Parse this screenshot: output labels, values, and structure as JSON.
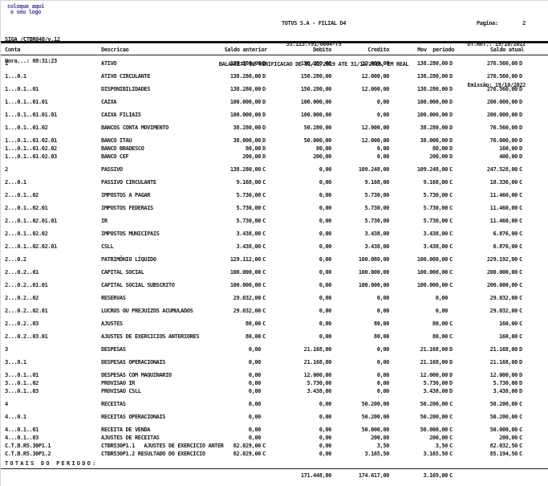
{
  "page": {
    "logo": "coloque aqui\no seu logo",
    "logo_color": "#4540a2",
    "system_line": "SIGA /CTBR040/v.12",
    "time_line": "Hora...: 08:31:23",
    "company_line": "TOTVS S.A - FILIAL D4",
    "cnpj_line": "53.113.791/0004-75",
    "title_line": "BALANCETE DE VERIFICACAO DE 01/01/2019 ATE 31/12/2019, EM REAL",
    "page_line": "Pagina:        2",
    "ref_line": "DT.Ref.: 19/10/2022",
    "emission_line": "Emissão: 19/10/2022"
  },
  "table": {
    "headers": {
      "conta": "Conta",
      "descricao": "Descricao",
      "saldo_anterior": "Saldo anterior",
      "debito": "Debito",
      "credito": "Credito",
      "mov_periodo": "Mov  periodo",
      "saldo_atual": "Saldo atual"
    },
    "rows": [
      {
        "conta": "1",
        "desc": "ATIVO",
        "sa": "138.280,00",
        "sas": "D",
        "deb": "150.280,00",
        "cred": "12.000,00",
        "mov": "138.280,00",
        "movs": "D",
        "atual": "276.560,00",
        "atuals": "D",
        "tight": false
      },
      {
        "conta": "1...0.1",
        "desc": "ATIVO CIRCULANTE",
        "sa": "138.280,00",
        "sas": "D",
        "deb": "150.280,00",
        "cred": "12.000,00",
        "mov": "138.280,00",
        "movs": "D",
        "atual": "276.560,00",
        "atuals": "D",
        "tight": false
      },
      {
        "conta": "1...0.1..01",
        "desc": "DISPONIBILIDADES",
        "sa": "138.280,00",
        "sas": "D",
        "deb": "150.280,00",
        "cred": "12.000,00",
        "mov": "138.280,00",
        "movs": "D",
        "atual": "276.560,00",
        "atuals": "D",
        "tight": false
      },
      {
        "conta": "1...0.1..01.01",
        "desc": "CAIXA",
        "sa": "100.000,00",
        "sas": "D",
        "deb": "100.000,00",
        "cred": "0,00",
        "mov": "100.000,00",
        "movs": "D",
        "atual": "200.000,00",
        "atuals": "D",
        "tight": false
      },
      {
        "conta": "1...0.1..01.01.01",
        "desc": "CAIXA FILIAIS",
        "sa": "100.000,00",
        "sas": "D",
        "deb": "100.000,00",
        "cred": "0,00",
        "mov": "100.000,00",
        "movs": "D",
        "atual": "200.000,00",
        "atuals": "D",
        "tight": false
      },
      {
        "conta": "1...0.1..01.02",
        "desc": "BANCOS CONTA MOVIMENTO",
        "sa": "38.280,00",
        "sas": "D",
        "deb": "50.280,00",
        "cred": "12.000,00",
        "mov": "38.280,00",
        "movs": "D",
        "atual": "76.560,00",
        "atuals": "D",
        "tight": false
      },
      {
        "conta": "1...0.1..01.02.01",
        "desc": "BANCO ITAU",
        "sa": "38.000,00",
        "sas": "D",
        "deb": "50.000,00",
        "cred": "12.000,00",
        "mov": "38.000,00",
        "movs": "D",
        "atual": "76.000,00",
        "atuals": "D",
        "tight": false
      },
      {
        "conta": "1...0.1..01.02.02",
        "desc": "BANCO BRADESCO",
        "sa": "80,00",
        "sas": "D",
        "deb": "80,00",
        "cred": "0,00",
        "mov": "80,00",
        "movs": "D",
        "atual": "160,00",
        "atuals": "D",
        "tight": true
      },
      {
        "conta": "1...0.1..01.02.03",
        "desc": "BANCO CEF",
        "sa": "200,00",
        "sas": "D",
        "deb": "200,00",
        "cred": "0,00",
        "mov": "200,00",
        "movs": "D",
        "atual": "400,00",
        "atuals": "D",
        "tight": true
      },
      {
        "conta": "2",
        "desc": "PASSIVO",
        "sa": "138.280,00",
        "sas": "C",
        "deb": "0,00",
        "cred": "109.248,00",
        "mov": "109.248,00",
        "movs": "C",
        "atual": "247.528,00",
        "atuals": "C",
        "tight": false
      },
      {
        "conta": "2...0.1",
        "desc": "PASSIVO CIRCULANTE",
        "sa": "9.168,00",
        "sas": "C",
        "deb": "0,00",
        "cred": "9.168,00",
        "mov": "9.168,00",
        "movs": "C",
        "atual": "18.336,00",
        "atuals": "C",
        "tight": false
      },
      {
        "conta": "2...0.1..02",
        "desc": "IMPOSTOS A PAGAR",
        "sa": "5.730,00",
        "sas": "C",
        "deb": "0,00",
        "cred": "5.730,00",
        "mov": "5.730,00",
        "movs": "C",
        "atual": "11.460,00",
        "atuals": "C",
        "tight": false
      },
      {
        "conta": "2...0.1..02.01",
        "desc": "IMPOSTOS FEDERAIS",
        "sa": "5.730,00",
        "sas": "C",
        "deb": "0,00",
        "cred": "5.730,00",
        "mov": "5.730,00",
        "movs": "C",
        "atual": "11.460,00",
        "atuals": "C",
        "tight": false
      },
      {
        "conta": "2...0.1..02.01.01",
        "desc": "IR",
        "sa": "5.730,00",
        "sas": "C",
        "deb": "0,00",
        "cred": "5.730,00",
        "mov": "5.730,00",
        "movs": "C",
        "atual": "11.460,00",
        "atuals": "C",
        "tight": false
      },
      {
        "conta": "2...0.1..02.02",
        "desc": "IMPOSTOS MUNICIPAIS",
        "sa": "3.438,00",
        "sas": "C",
        "deb": "0,00",
        "cred": "3.438,00",
        "mov": "3.438,00",
        "movs": "C",
        "atual": "6.876,00",
        "atuals": "C",
        "tight": false
      },
      {
        "conta": "2...0.1..02.02.01",
        "desc": "CSLL",
        "sa": "3.438,00",
        "sas": "C",
        "deb": "0,00",
        "cred": "3.438,00",
        "mov": "3.438,00",
        "movs": "C",
        "atual": "6.876,00",
        "atuals": "C",
        "tight": false
      },
      {
        "conta": "2...0.2",
        "desc": "PATRIMÔNIO LÍQUIDO",
        "sa": "129.112,00",
        "sas": "C",
        "deb": "0,00",
        "cred": "100.080,00",
        "mov": "100.080,00",
        "movs": "C",
        "atual": "229.192,00",
        "atuals": "C",
        "tight": false
      },
      {
        "conta": "2...0.2..01",
        "desc": "CAPITAL SOCIAL",
        "sa": "100.000,00",
        "sas": "C",
        "deb": "0,00",
        "cred": "100.000,00",
        "mov": "100.000,00",
        "movs": "C",
        "atual": "200.000,00",
        "atuals": "C",
        "tight": false
      },
      {
        "conta": "2...0.2..01.01",
        "desc": "CAPITAL SOCIAL SUBSCRITO",
        "sa": "100.000,00",
        "sas": "C",
        "deb": "0,00",
        "cred": "100.000,00",
        "mov": "100.000,00",
        "movs": "C",
        "atual": "200.000,00",
        "atuals": "C",
        "tight": false
      },
      {
        "conta": "2...0.2..02",
        "desc": "RESERVAS",
        "sa": "29.032,00",
        "sas": "C",
        "deb": "0,00",
        "cred": "0,00",
        "mov": "0,00",
        "movs": "",
        "atual": "29.032,00",
        "atuals": "C",
        "tight": false
      },
      {
        "conta": "2...0.2..02.01",
        "desc": "LUCROS OU PREJUIZOS ACUMULADOS",
        "sa": "29.032,00",
        "sas": "C",
        "deb": "0,00",
        "cred": "0,00",
        "mov": "0,00",
        "movs": "",
        "atual": "29.032,00",
        "atuals": "C",
        "tight": false
      },
      {
        "conta": "2...0.2..03",
        "desc": "AJUSTES",
        "sa": "80,00",
        "sas": "C",
        "deb": "0,00",
        "cred": "80,00",
        "mov": "80,00",
        "movs": "C",
        "atual": "160,00",
        "atuals": "C",
        "tight": false
      },
      {
        "conta": "2...0.2..03.01",
        "desc": "AJUSTES DE EXERCICIOS ANTERIORES",
        "sa": "80,00",
        "sas": "C",
        "deb": "0,00",
        "cred": "80,00",
        "mov": "80,00",
        "movs": "C",
        "atual": "160,00",
        "atuals": "C",
        "tight": false
      },
      {
        "conta": "3",
        "desc": "DESPESAS",
        "sa": "0,00",
        "sas": "",
        "deb": "21.168,00",
        "cred": "0,00",
        "mov": "21.168,00",
        "movs": "D",
        "atual": "21.168,00",
        "atuals": "D",
        "tight": false
      },
      {
        "conta": "3...0.1",
        "desc": "DESPESAS OPERACIONAIS",
        "sa": "0,00",
        "sas": "",
        "deb": "21.168,00",
        "cred": "0,00",
        "mov": "21.168,00",
        "movs": "D",
        "atual": "21.168,00",
        "atuals": "D",
        "tight": false
      },
      {
        "conta": "3...0.1..01",
        "desc": "DESPESAS COM MAQUINARIO",
        "sa": "0,00",
        "sas": "",
        "deb": "12.000,00",
        "cred": "0,00",
        "mov": "12.000,00",
        "movs": "D",
        "atual": "12.000,00",
        "atuals": "D",
        "tight": false
      },
      {
        "conta": "3...0.1..02",
        "desc": "PROVISAO IR",
        "sa": "0,00",
        "sas": "",
        "deb": "5.730,00",
        "cred": "0,00",
        "mov": "5.730,00",
        "movs": "D",
        "atual": "5.730,00",
        "atuals": "D",
        "tight": true
      },
      {
        "conta": "3...0.1..03",
        "desc": "PROVISAO CSLL",
        "sa": "0,00",
        "sas": "",
        "deb": "3.438,00",
        "cred": "0,00",
        "mov": "3.438,00",
        "movs": "D",
        "atual": "3.438,00",
        "atuals": "D",
        "tight": true
      },
      {
        "conta": "4",
        "desc": "RECEITAS",
        "sa": "0,00",
        "sas": "",
        "deb": "0,00",
        "cred": "50.200,00",
        "mov": "50.200,00",
        "movs": "C",
        "atual": "50.200,00",
        "atuals": "C",
        "tight": false
      },
      {
        "conta": "4...0.1",
        "desc": "RECEITAS OPERACIONAIS",
        "sa": "0,00",
        "sas": "",
        "deb": "0,00",
        "cred": "50.200,00",
        "mov": "50.200,00",
        "movs": "C",
        "atual": "50.200,00",
        "atuals": "C",
        "tight": false
      },
      {
        "conta": "4...0.1..01",
        "desc": "RECEITA DE VENDA",
        "sa": "0,00",
        "sas": "",
        "deb": "0,00",
        "cred": "50.000,00",
        "mov": "50.000,00",
        "movs": "C",
        "atual": "50.000,00",
        "atuals": "C",
        "tight": false
      },
      {
        "conta": "4...0.1..03",
        "desc": "AJUSTES DE RECEITAS",
        "sa": "0,00",
        "sas": "",
        "deb": "0,00",
        "cred": "200,00",
        "mov": "200,00",
        "movs": "C",
        "atual": "200,00",
        "atuals": "C",
        "tight": true
      },
      {
        "conta": "C.T.B.R5.30P1.1",
        "desc": "CTBR530P1.1   AJUSTES DE EXERCICIO ANTER",
        "sa": "82.029,00",
        "sas": "C",
        "deb": "0,00",
        "cred": "3,50",
        "mov": "3,50",
        "movs": "C",
        "atual": "82.032,50",
        "atuals": "C",
        "tight": true
      },
      {
        "conta": "C.T.B.R5.30P1.2",
        "desc": "CTBR530P1.2 RESULTADO DO EXERCICIO",
        "sa": "82.029,00",
        "sas": "C",
        "deb": "0,00",
        "cred": "3.165,50",
        "mov": "3.165,50",
        "movs": "C",
        "atual": "85.194,50",
        "atuals": "C",
        "tight": true
      }
    ]
  },
  "totals": {
    "label": "TOTAIS DO PERIODO:",
    "debito": "171.448,00",
    "credito": "174.617,00",
    "mov_periodo": "3.169,00",
    "mov_suffix": "C"
  }
}
